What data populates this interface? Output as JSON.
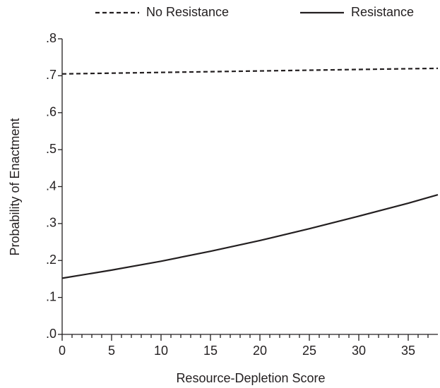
{
  "chart_data": {
    "type": "line",
    "x_label": "Resource-Depletion Score",
    "y_label": "Probability of Enactment",
    "x": [
      0,
      5,
      10,
      15,
      20,
      25,
      30,
      35,
      38
    ],
    "series": [
      {
        "name": "No Resistance",
        "color": "#231f20",
        "dash": true,
        "values": [
          0.705,
          0.707,
          0.709,
          0.711,
          0.713,
          0.715,
          0.717,
          0.719,
          0.72
        ]
      },
      {
        "name": "Resistance",
        "color": "#231f20",
        "dash": false,
        "values": [
          0.152,
          0.174,
          0.198,
          0.225,
          0.254,
          0.286,
          0.32,
          0.355,
          0.378
        ]
      }
    ],
    "xlim": [
      0,
      38
    ],
    "xticks": [
      0,
      5,
      10,
      15,
      20,
      25,
      30,
      35
    ],
    "xminorticks": [
      1,
      2,
      3,
      4,
      6,
      7,
      8,
      9,
      11,
      12,
      13,
      14,
      16,
      17,
      18,
      19,
      21,
      22,
      23,
      24,
      26,
      27,
      28,
      29,
      31,
      32,
      33,
      34,
      36,
      37
    ],
    "ylim": [
      0,
      0.8
    ],
    "yticks": [
      {
        "value": 0,
        "label": ".0"
      },
      {
        "value": 0.1,
        "label": ".1"
      },
      {
        "value": 0.2,
        "label": ".2"
      },
      {
        "value": 0.3,
        "label": ".3"
      },
      {
        "value": 0.4,
        "label": ".4"
      },
      {
        "value": 0.5,
        "label": ".5"
      },
      {
        "value": 0.6,
        "label": ".6"
      },
      {
        "value": 0.7,
        "label": ".7"
      },
      {
        "value": 0.8,
        "label": ".8"
      }
    ],
    "legend": "top"
  }
}
